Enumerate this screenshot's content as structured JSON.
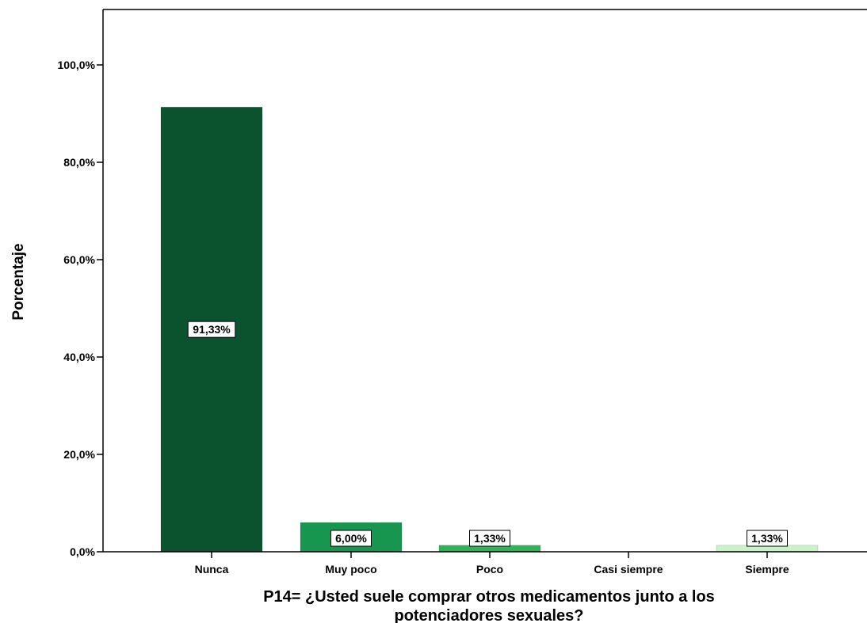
{
  "chart_data": {
    "type": "bar",
    "categories": [
      "Nunca",
      "Muy poco",
      "Poco",
      "Casi siempre",
      "Siempre"
    ],
    "values": [
      91.33,
      6.0,
      1.33,
      0,
      1.33
    ],
    "data_labels": [
      "91,33%",
      "6,00%",
      "1,33%",
      "",
      "1,33%"
    ],
    "colors": [
      "#0b532e",
      "#179650",
      "#2eb457",
      "#7ed88a",
      "#c6f4c4"
    ],
    "ylabel": "Porcentaje",
    "xlabel_lines": [
      "P14= ¿Usted suele comprar otros medicamentos junto a los",
      "potenciadores sexuales?"
    ],
    "yticks": [
      0,
      20,
      40,
      60,
      80,
      100
    ],
    "ytick_labels": [
      "0,0%",
      "20,0%",
      "40,0%",
      "60,0%",
      "80,0%",
      "100,0%"
    ],
    "ylim": [
      0,
      110
    ],
    "grid": false
  }
}
